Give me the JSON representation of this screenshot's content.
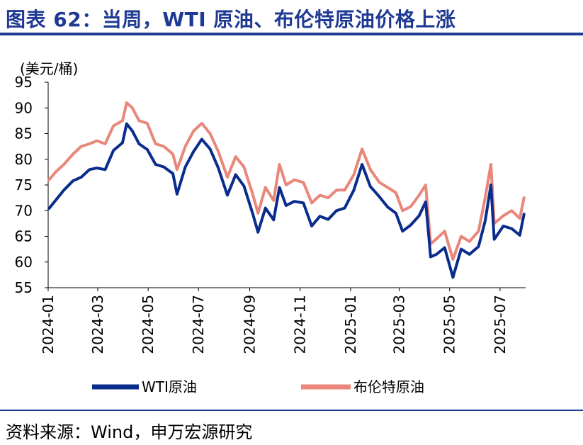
{
  "header": {
    "title": "图表 62：当周，WTI 原油、布伦特原油价格上涨"
  },
  "footer": {
    "source": "资料来源：Wind，申万宏源研究"
  },
  "colors": {
    "accent": "#1f3a93",
    "wti": "#0a2c8c",
    "brent": "#e8877a"
  },
  "chart_data": {
    "type": "line",
    "ylabel": "(美元/桶)",
    "ylim": [
      55,
      95
    ],
    "yticks": [
      55,
      60,
      65,
      70,
      75,
      80,
      85,
      90,
      95
    ],
    "xlim": [
      "2024-01-01",
      "2025-08-01"
    ],
    "xticks": [
      "2024-01",
      "2024-03",
      "2024-05",
      "2024-07",
      "2024-09",
      "2024-11",
      "2025-01",
      "2025-03",
      "2025-05",
      "2025-07"
    ],
    "legend": "bottom",
    "series": [
      {
        "name": "WTI原油",
        "x": [
          "2024-01-02",
          "2024-01-10",
          "2024-01-20",
          "2024-01-31",
          "2024-02-10",
          "2024-02-20",
          "2024-02-29",
          "2024-03-10",
          "2024-03-20",
          "2024-03-31",
          "2024-04-05",
          "2024-04-12",
          "2024-04-20",
          "2024-04-30",
          "2024-05-10",
          "2024-05-20",
          "2024-05-31",
          "2024-06-05",
          "2024-06-15",
          "2024-06-25",
          "2024-07-05",
          "2024-07-15",
          "2024-07-25",
          "2024-08-05",
          "2024-08-15",
          "2024-08-25",
          "2024-09-05",
          "2024-09-11",
          "2024-09-20",
          "2024-09-30",
          "2024-10-07",
          "2024-10-15",
          "2024-10-25",
          "2024-11-05",
          "2024-11-15",
          "2024-11-25",
          "2024-12-05",
          "2024-12-15",
          "2024-12-25",
          "2025-01-05",
          "2025-01-15",
          "2025-01-25",
          "2025-02-05",
          "2025-02-15",
          "2025-02-25",
          "2025-03-05",
          "2025-03-15",
          "2025-03-25",
          "2025-04-02",
          "2025-04-08",
          "2025-04-15",
          "2025-04-25",
          "2025-05-05",
          "2025-05-15",
          "2025-05-25",
          "2025-06-05",
          "2025-06-13",
          "2025-06-20",
          "2025-06-24",
          "2025-07-05",
          "2025-07-15",
          "2025-07-25",
          "2025-07-30"
        ],
        "values": [
          70.4,
          72.0,
          74.0,
          75.8,
          76.5,
          78.0,
          78.3,
          78.0,
          81.7,
          83.2,
          86.9,
          85.5,
          83.0,
          81.9,
          79.0,
          78.5,
          77.2,
          73.2,
          78.5,
          81.5,
          83.9,
          82.0,
          78.3,
          73.0,
          77.0,
          74.8,
          69.2,
          65.8,
          70.5,
          68.2,
          74.5,
          71.0,
          71.8,
          71.5,
          67.0,
          68.9,
          68.3,
          70.0,
          70.5,
          74.0,
          79.0,
          74.7,
          72.7,
          70.7,
          69.5,
          66.0,
          67.2,
          69.0,
          71.7,
          61.0,
          61.5,
          62.8,
          57.0,
          62.5,
          61.5,
          63.0,
          68.0,
          75.0,
          64.4,
          67.0,
          66.5,
          65.2,
          69.3
        ]
      },
      {
        "name": "布伦特原油",
        "x": [
          "2024-01-02",
          "2024-01-10",
          "2024-01-20",
          "2024-01-31",
          "2024-02-10",
          "2024-02-20",
          "2024-02-29",
          "2024-03-10",
          "2024-03-20",
          "2024-03-31",
          "2024-04-05",
          "2024-04-12",
          "2024-04-20",
          "2024-04-30",
          "2024-05-10",
          "2024-05-20",
          "2024-05-31",
          "2024-06-05",
          "2024-06-15",
          "2024-06-25",
          "2024-07-05",
          "2024-07-15",
          "2024-07-25",
          "2024-08-05",
          "2024-08-15",
          "2024-08-25",
          "2024-09-05",
          "2024-09-11",
          "2024-09-20",
          "2024-09-30",
          "2024-10-07",
          "2024-10-15",
          "2024-10-25",
          "2024-11-05",
          "2024-11-15",
          "2024-11-25",
          "2024-12-05",
          "2024-12-15",
          "2024-12-25",
          "2025-01-05",
          "2025-01-15",
          "2025-01-25",
          "2025-02-05",
          "2025-02-15",
          "2025-02-25",
          "2025-03-05",
          "2025-03-15",
          "2025-03-25",
          "2025-04-02",
          "2025-04-08",
          "2025-04-15",
          "2025-04-25",
          "2025-05-05",
          "2025-05-15",
          "2025-05-25",
          "2025-06-05",
          "2025-06-13",
          "2025-06-20",
          "2025-06-24",
          "2025-07-05",
          "2025-07-15",
          "2025-07-25",
          "2025-07-30"
        ],
        "values": [
          76.0,
          77.5,
          79.0,
          81.0,
          82.5,
          83.0,
          83.6,
          83.0,
          86.5,
          87.5,
          91.0,
          90.0,
          87.5,
          87.0,
          83.0,
          82.5,
          81.0,
          78.0,
          82.5,
          85.5,
          87.0,
          85.0,
          81.5,
          76.5,
          80.5,
          78.5,
          73.0,
          69.5,
          74.5,
          72.0,
          79.0,
          75.0,
          76.0,
          75.5,
          71.5,
          73.0,
          72.5,
          74.0,
          74.0,
          77.0,
          82.0,
          78.0,
          75.5,
          74.5,
          73.5,
          70.0,
          70.8,
          73.0,
          75.0,
          63.5,
          64.5,
          66.0,
          60.5,
          65.0,
          64.0,
          66.0,
          72.5,
          79.0,
          67.5,
          69.0,
          70.0,
          68.5,
          72.5
        ]
      }
    ]
  }
}
